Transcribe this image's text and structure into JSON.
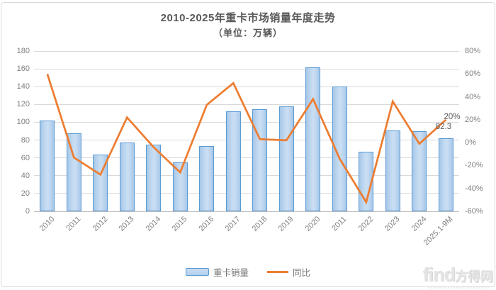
{
  "title": "2010-2025年重卡市场销量年度走势",
  "subtitle": "（单位：万辆）",
  "chart_data": {
    "type": "combo-bar-line",
    "categories": [
      "2010",
      "2011",
      "2012",
      "2013",
      "2014",
      "2015",
      "2016",
      "2017",
      "2018",
      "2019",
      "2020",
      "2011",
      "2022",
      "2023",
      "2024",
      "2025.1-9M"
    ],
    "series": [
      {
        "name": "重卡销量",
        "type": "bar",
        "axis": "left",
        "unit": "万辆",
        "values": [
          102,
          88,
          64,
          77,
          75,
          55,
          73,
          112,
          115,
          118,
          162,
          140,
          67,
          91,
          90,
          82.3
        ]
      },
      {
        "name": "同比",
        "type": "line",
        "axis": "right",
        "unit": "%",
        "values": [
          60,
          -13,
          -28,
          22,
          -4,
          -26,
          33,
          52,
          3,
          2,
          38,
          -14,
          -52,
          36,
          -1,
          20
        ]
      }
    ],
    "left_axis": {
      "min": 0,
      "max": 180,
      "step": 20,
      "ticks": [
        "180",
        "160",
        "140",
        "120",
        "100",
        "80",
        "60",
        "40",
        "20",
        "0"
      ]
    },
    "right_axis": {
      "min_pct": -60,
      "max_pct": 80,
      "step_pct": 20,
      "ticks": [
        "80%",
        "60%",
        "40%",
        "20%",
        "0%",
        "-20%",
        "-40%",
        "-60%"
      ]
    },
    "data_labels": {
      "last_point_pct": "20%",
      "last_bar_value": "82.3"
    },
    "grid": "horizontal",
    "legend_position": "bottom",
    "colors": {
      "bar_fill": "#BDD7EE",
      "bar_border": "#5B9BD5",
      "line": "#ED7D31",
      "grid": "#D9D9D9",
      "axis_zero_line": "#BFBFBF",
      "axis_text": "#7F7F7F",
      "title_text": "#595959"
    }
  },
  "legend": [
    {
      "label": "重卡销量",
      "swatch": "bar"
    },
    {
      "label": "同比",
      "swatch": "line"
    }
  ],
  "watermark": {
    "logo_text": "find",
    "brand_text": "方得网"
  }
}
